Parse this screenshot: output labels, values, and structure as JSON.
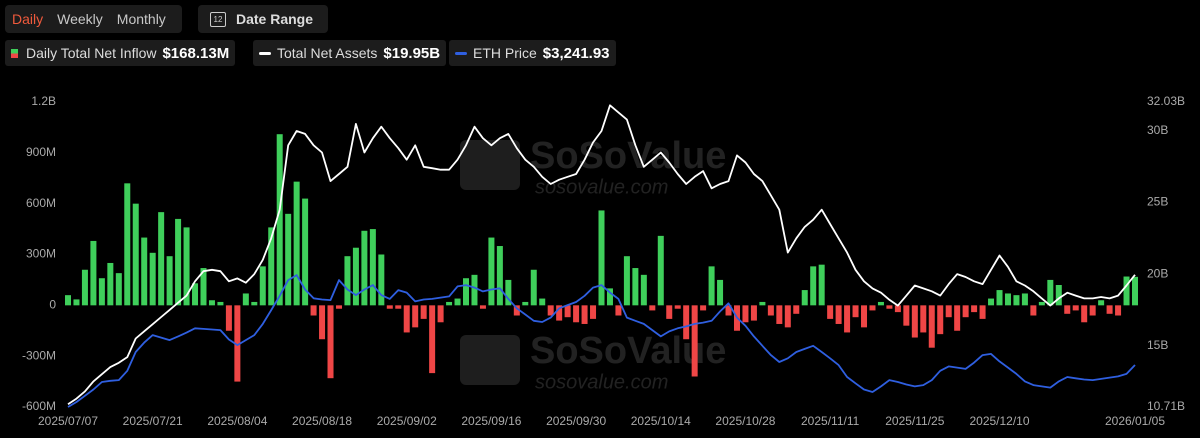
{
  "controls": {
    "periods": [
      "Daily",
      "Weekly",
      "Monthly"
    ],
    "selected": 0,
    "date_range_icon": "12",
    "date_range": "Date Range"
  },
  "watermark": {
    "brand": "SoSoValue",
    "site": "sosovalue.com"
  },
  "chart_data": {
    "type": "bar-line",
    "categories": [
      "2025/07/07",
      null,
      null,
      null,
      null,
      null,
      null,
      null,
      null,
      null,
      "2025/07/21",
      null,
      null,
      null,
      null,
      null,
      null,
      null,
      null,
      null,
      "2025/08/04",
      null,
      null,
      null,
      null,
      null,
      null,
      null,
      null,
      null,
      "2025/08/18",
      null,
      null,
      null,
      null,
      null,
      null,
      null,
      null,
      null,
      "2025/09/02",
      null,
      null,
      null,
      null,
      null,
      null,
      null,
      null,
      null,
      "2025/09/16",
      null,
      null,
      null,
      null,
      null,
      null,
      null,
      null,
      null,
      "2025/09/30",
      null,
      null,
      null,
      null,
      null,
      null,
      null,
      null,
      null,
      "2025/10/14",
      null,
      null,
      null,
      null,
      null,
      null,
      null,
      null,
      null,
      "2025/10/28",
      null,
      null,
      null,
      null,
      null,
      null,
      null,
      null,
      null,
      "2025/11/11",
      null,
      null,
      null,
      null,
      null,
      null,
      null,
      null,
      null,
      "2025/11/25",
      null,
      null,
      null,
      null,
      null,
      null,
      null,
      null,
      null,
      "2025/12/10",
      null,
      null,
      null,
      null,
      null,
      null,
      null,
      null,
      null,
      null,
      null,
      null,
      null,
      null,
      null,
      "2026/01/05"
    ],
    "series": [
      {
        "name": "Daily Total Net Inflow",
        "current": "$168.13M",
        "type": "bar",
        "color": "#3fcf5b",
        "negative_color": "#ef4646",
        "values": [
          60000000.0,
          35000000.0,
          210000000.0,
          380000000.0,
          160000000.0,
          250000000.0,
          190000000.0,
          720000000.0,
          600000000.0,
          400000000.0,
          310000000.0,
          550000000.0,
          290000000.0,
          510000000.0,
          460000000.0,
          130000000.0,
          220000000.0,
          30000000.0,
          20000000.0,
          -150000000.0,
          -450000000.0,
          70000000.0,
          20000000.0,
          230000000.0,
          460000000.0,
          1010000000.0,
          540000000.0,
          730000000.0,
          630000000.0,
          -60000000.0,
          -200000000.0,
          -430000000.0,
          -20000000.0,
          290000000.0,
          340000000.0,
          440000000.0,
          450000000.0,
          300000000.0,
          -20000000.0,
          -20000000.0,
          -160000000.0,
          -130000000.0,
          -80000000.0,
          -400000000.0,
          -100000000.0,
          20000000.0,
          40000000.0,
          160000000.0,
          180000000.0,
          -20000000.0,
          400000000.0,
          350000000.0,
          150000000.0,
          -60000000.0,
          20000000.0,
          210000000.0,
          40000000.0,
          -60000000.0,
          -90000000.0,
          -70000000.0,
          -100000000.0,
          -110000000.0,
          -80000000.0,
          560000000.0,
          100000000.0,
          -60000000.0,
          290000000.0,
          220000000.0,
          180000000.0,
          -30000000.0,
          410000000.0,
          -80000000.0,
          -20000000.0,
          -200000000.0,
          -420000000.0,
          -30000000.0,
          230000000.0,
          150000000.0,
          -60000000.0,
          -150000000.0,
          -100000000.0,
          -90000000.0,
          20000000.0,
          -60000000.0,
          -110000000.0,
          -130000000.0,
          -50000000.0,
          90000000.0,
          230000000.0,
          240000000.0,
          -80000000.0,
          -110000000.0,
          -160000000.0,
          -70000000.0,
          -130000000.0,
          -30000000.0,
          20000000.0,
          -20000000.0,
          -40000000.0,
          -120000000.0,
          -190000000.0,
          -160000000.0,
          -250000000.0,
          -170000000.0,
          -70000000.0,
          -150000000.0,
          -70000000.0,
          -40000000.0,
          -80000000.0,
          40000000.0,
          90000000.0,
          70000000.0,
          60000000.0,
          70000000.0,
          -60000000.0,
          20000000.0,
          150000000.0,
          120000000.0,
          -50000000.0,
          -30000000.0,
          -100000000.0,
          -60000000.0,
          30000000.0,
          -50000000.0,
          -60000000.0,
          170000000.0,
          168130000.0
        ]
      },
      {
        "name": "Total Net Assets",
        "current": "$19.95B",
        "type": "line",
        "axis": "y2",
        "color": "#ffffff",
        "values": [
          10900000000.0,
          11300000000.0,
          11800000000.0,
          12500000000.0,
          13000000000.0,
          13500000000.0,
          13800000000.0,
          14200000000.0,
          15500000000.0,
          16000000000.0,
          16500000000.0,
          17000000000.0,
          17500000000.0,
          18000000000.0,
          18500000000.0,
          19500000000.0,
          20200000000.0,
          20300000000.0,
          20200000000.0,
          19500000000.0,
          19700000000.0,
          19400000000.0,
          20000000000.0,
          21000000000.0,
          22500000000.0,
          24500000000.0,
          29000000000.0,
          30000000000.0,
          29800000000.0,
          29000000000.0,
          28500000000.0,
          26500000000.0,
          27000000000.0,
          27500000000.0,
          30500000000.0,
          28500000000.0,
          29500000000.0,
          30300000000.0,
          29500000000.0,
          28800000000.0,
          28000000000.0,
          29000000000.0,
          27500000000.0,
          27400000000.0,
          27300000000.0,
          27300000000.0,
          28000000000.0,
          29000000000.0,
          30300000000.0,
          29500000000.0,
          29000000000.0,
          29500000000.0,
          29800000000.0,
          28800000000.0,
          28000000000.0,
          27500000000.0,
          26800000000.0,
          26300000000.0,
          26600000000.0,
          26800000000.0,
          27000000000.0,
          28000000000.0,
          29200000000.0,
          30000000000.0,
          31800000000.0,
          31300000000.0,
          30800000000.0,
          29000000000.0,
          27500000000.0,
          28000000000.0,
          28500000000.0,
          27800000000.0,
          27000000000.0,
          26300000000.0,
          26800000000.0,
          27200000000.0,
          26000000000.0,
          26300000000.0,
          26500000000.0,
          28300000000.0,
          27800000000.0,
          27000000000.0,
          26500000000.0,
          25500000000.0,
          24500000000.0,
          21500000000.0,
          22500000000.0,
          23300000000.0,
          23800000000.0,
          24500000000.0,
          23500000000.0,
          22500000000.0,
          21500000000.0,
          20300000000.0,
          19500000000.0,
          19000000000.0,
          18700000000.0,
          18200000000.0,
          17800000000.0,
          18500000000.0,
          19200000000.0,
          19000000000.0,
          18800000000.0,
          18500000000.0,
          19300000000.0,
          20000000000.0,
          19800000000.0,
          19500000000.0,
          19300000000.0,
          20300000000.0,
          21300000000.0,
          20500000000.0,
          19500000000.0,
          19200000000.0,
          18800000000.0,
          18300000000.0,
          17800000000.0,
          18300000000.0,
          18700000000.0,
          18500000000.0,
          18300000000.0,
          18300000000.0,
          18400000000.0,
          18300000000.0,
          18500000000.0,
          19200000000.0,
          19950000000.0
        ]
      },
      {
        "name": "ETH Price",
        "current": "$3,241.93",
        "type": "line",
        "axis": "y3",
        "color": "#2f5fe0",
        "values": [
          2570,
          2650,
          2750,
          2850,
          2970,
          2990,
          3000,
          3150,
          3450,
          3600,
          3720,
          3680,
          3640,
          3700,
          3760,
          3830,
          3820,
          3810,
          3800,
          3650,
          3560,
          3640,
          3720,
          3900,
          4120,
          4350,
          4600,
          4680,
          4450,
          4310,
          4290,
          4280,
          4600,
          4450,
          4360,
          4450,
          4520,
          4360,
          4300,
          4440,
          4400,
          4260,
          4290,
          4300,
          4320,
          4340,
          4500,
          4520,
          4480,
          4420,
          4450,
          4470,
          4300,
          4150,
          4050,
          3950,
          3930,
          4000,
          4150,
          4200,
          4250,
          4350,
          4480,
          4520,
          4400,
          4300,
          4000,
          3950,
          3900,
          3800,
          3700,
          3780,
          3830,
          3860,
          3900,
          3920,
          3950,
          4100,
          4230,
          4000,
          3870,
          3700,
          3550,
          3400,
          3290,
          3350,
          3450,
          3500,
          3550,
          3450,
          3350,
          3240,
          3050,
          2950,
          2850,
          2810,
          2900,
          3000,
          2970,
          2930,
          2900,
          2920,
          3000,
          3150,
          3220,
          3200,
          3180,
          3280,
          3400,
          3420,
          3300,
          3200,
          3100,
          2980,
          2920,
          2900,
          2880,
          2980,
          3050,
          3030,
          3010,
          3000,
          3020,
          3040,
          3060,
          3100,
          3241.93
        ]
      }
    ],
    "ylim": [
      -600000000.0,
      1200000000.0
    ],
    "yticks": [
      {
        "value": -600000000.0,
        "label": "-600M"
      },
      {
        "value": -300000000.0,
        "label": "-300M"
      },
      0,
      {
        "value": 300000000.0,
        "label": "300M"
      },
      {
        "value": 600000000.0,
        "label": "600M"
      },
      {
        "value": 900000000.0,
        "label": "900M"
      },
      {
        "value": 1200000000.0,
        "label": "1.2B"
      }
    ],
    "y2lim": [
      10710000000.0,
      32030000000.0
    ],
    "y2ticks": [
      {
        "value": 10710000000.0,
        "label": "10.71B"
      },
      {
        "value": 15000000000.0,
        "label": "15B"
      },
      {
        "value": 20000000000.0,
        "label": "20B"
      },
      {
        "value": 25000000000.0,
        "label": "25B"
      },
      {
        "value": 30000000000.0,
        "label": "30B"
      },
      {
        "value": 32030000000.0,
        "label": "32.03B"
      }
    ],
    "y3lim": [
      2570,
      7450
    ],
    "grid": false
  }
}
